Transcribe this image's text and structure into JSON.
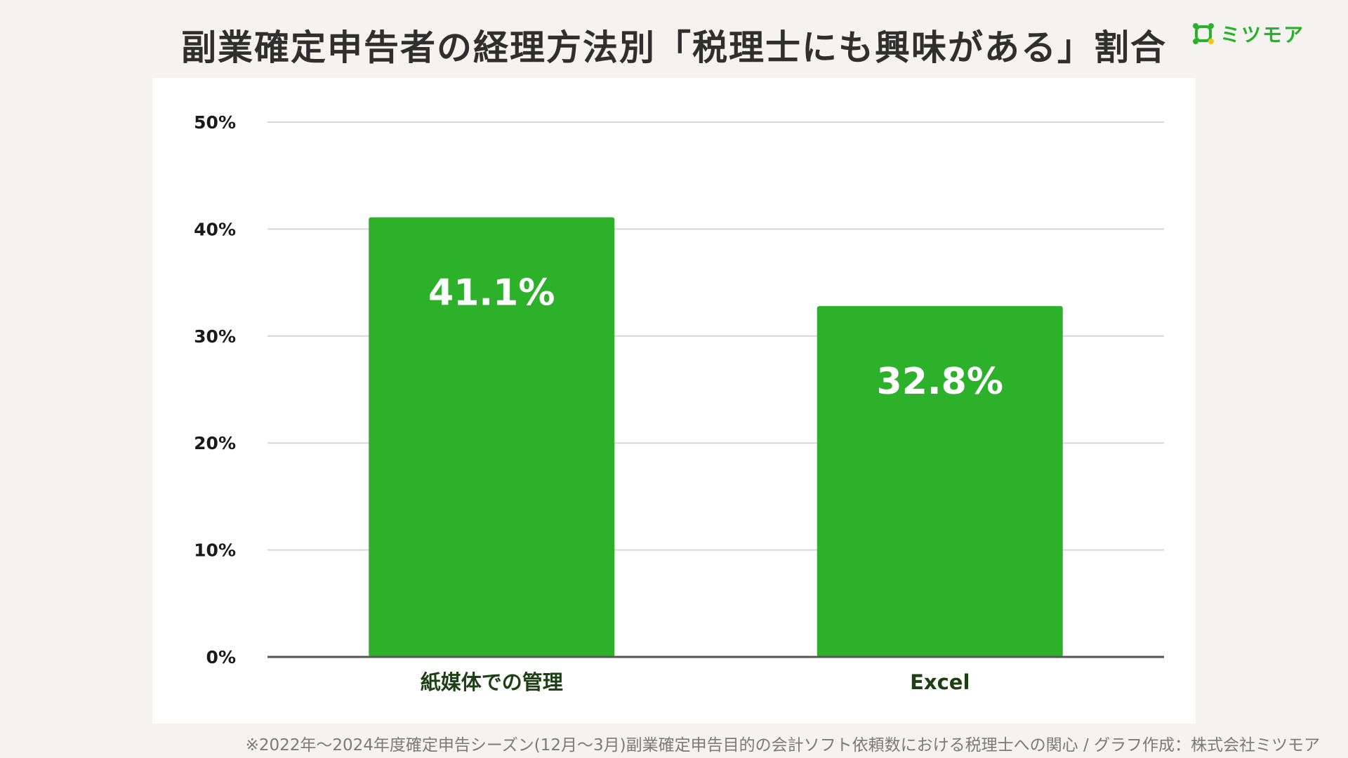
{
  "header": {
    "title": "副業確定申告者の経理方法別「税理士にも興味がある」割合"
  },
  "brand": {
    "name": "ミツモア",
    "logo_icon": "mitsumore-logo-icon",
    "color": "#2bb02b"
  },
  "chart_data": {
    "type": "bar",
    "categories": [
      "紙媒体での管理",
      "Excel"
    ],
    "values": [
      41.1,
      32.8
    ],
    "value_labels": [
      "41.1%",
      "32.8%"
    ],
    "ylim": [
      0,
      50
    ],
    "yticks": [
      0,
      10,
      20,
      30,
      40,
      50
    ],
    "ytick_labels": [
      "0%",
      "10%",
      "20%",
      "30%",
      "40%",
      "50%"
    ],
    "grid": true,
    "bar_color": "#2db12a",
    "gridline_color": "#d6d6d6",
    "axis_color": "#555555"
  },
  "footer": {
    "note": "※2022年〜2024年度確定申告シーズン(12月〜3月)副業確定申告目的の会計ソフト依頼数における税理士への関心 / グラフ作成：株式会社ミツモア"
  }
}
